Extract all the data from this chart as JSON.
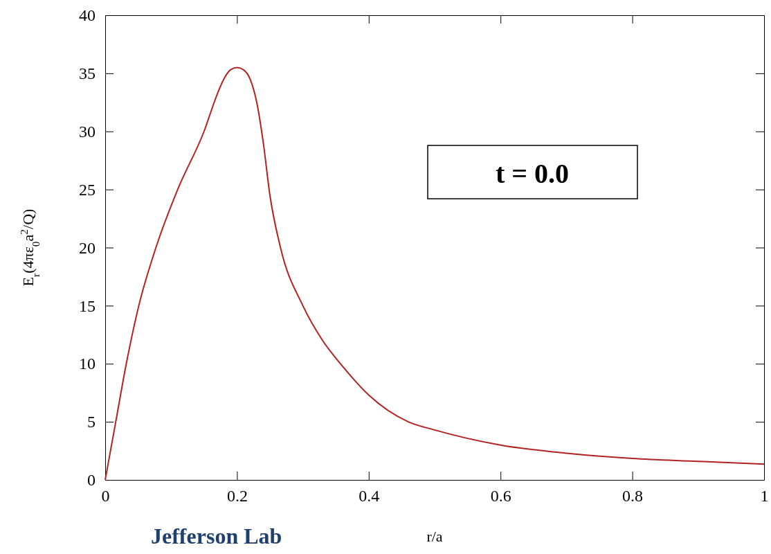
{
  "chart_data": {
    "type": "line",
    "xlabel": "r/a",
    "ylabel": "E$_{r}$(4πε$_{0}$a$^{2}$/Q)",
    "x": [
      0,
      0.016,
      0.032,
      0.051,
      0.077,
      0.11,
      0.15,
      0.17,
      0.18,
      0.19,
      0.2,
      0.21,
      0.22,
      0.23,
      0.24,
      0.25,
      0.266,
      0.3,
      0.33,
      0.36,
      0.4,
      0.46,
      0.5,
      0.6,
      0.7,
      0.8,
      0.9,
      1
    ],
    "series": [
      {
        "color": "#b22222",
        "values": [
          0,
          5,
          10,
          15,
          20,
          25,
          30,
          33.2,
          34.5,
          35.3,
          35.5,
          35.3,
          34.5,
          32.5,
          29,
          24.5,
          20,
          15,
          12,
          9.8,
          7.3,
          5,
          4.3,
          3.0,
          2.3,
          1.85,
          1.6,
          1.35
        ]
      }
    ],
    "xlim": [
      0,
      1
    ],
    "xticks": [
      0,
      0.2,
      0.4,
      0.6,
      0.8,
      1
    ],
    "ylim": [
      0,
      40
    ],
    "yticks": [
      0,
      5,
      10,
      15,
      20,
      25,
      30,
      35,
      40
    ],
    "grid": false,
    "marker": "none",
    "line_style": "solid",
    "annotations": [
      "t = 0.0",
      "Jefferson Lab"
    ]
  }
}
